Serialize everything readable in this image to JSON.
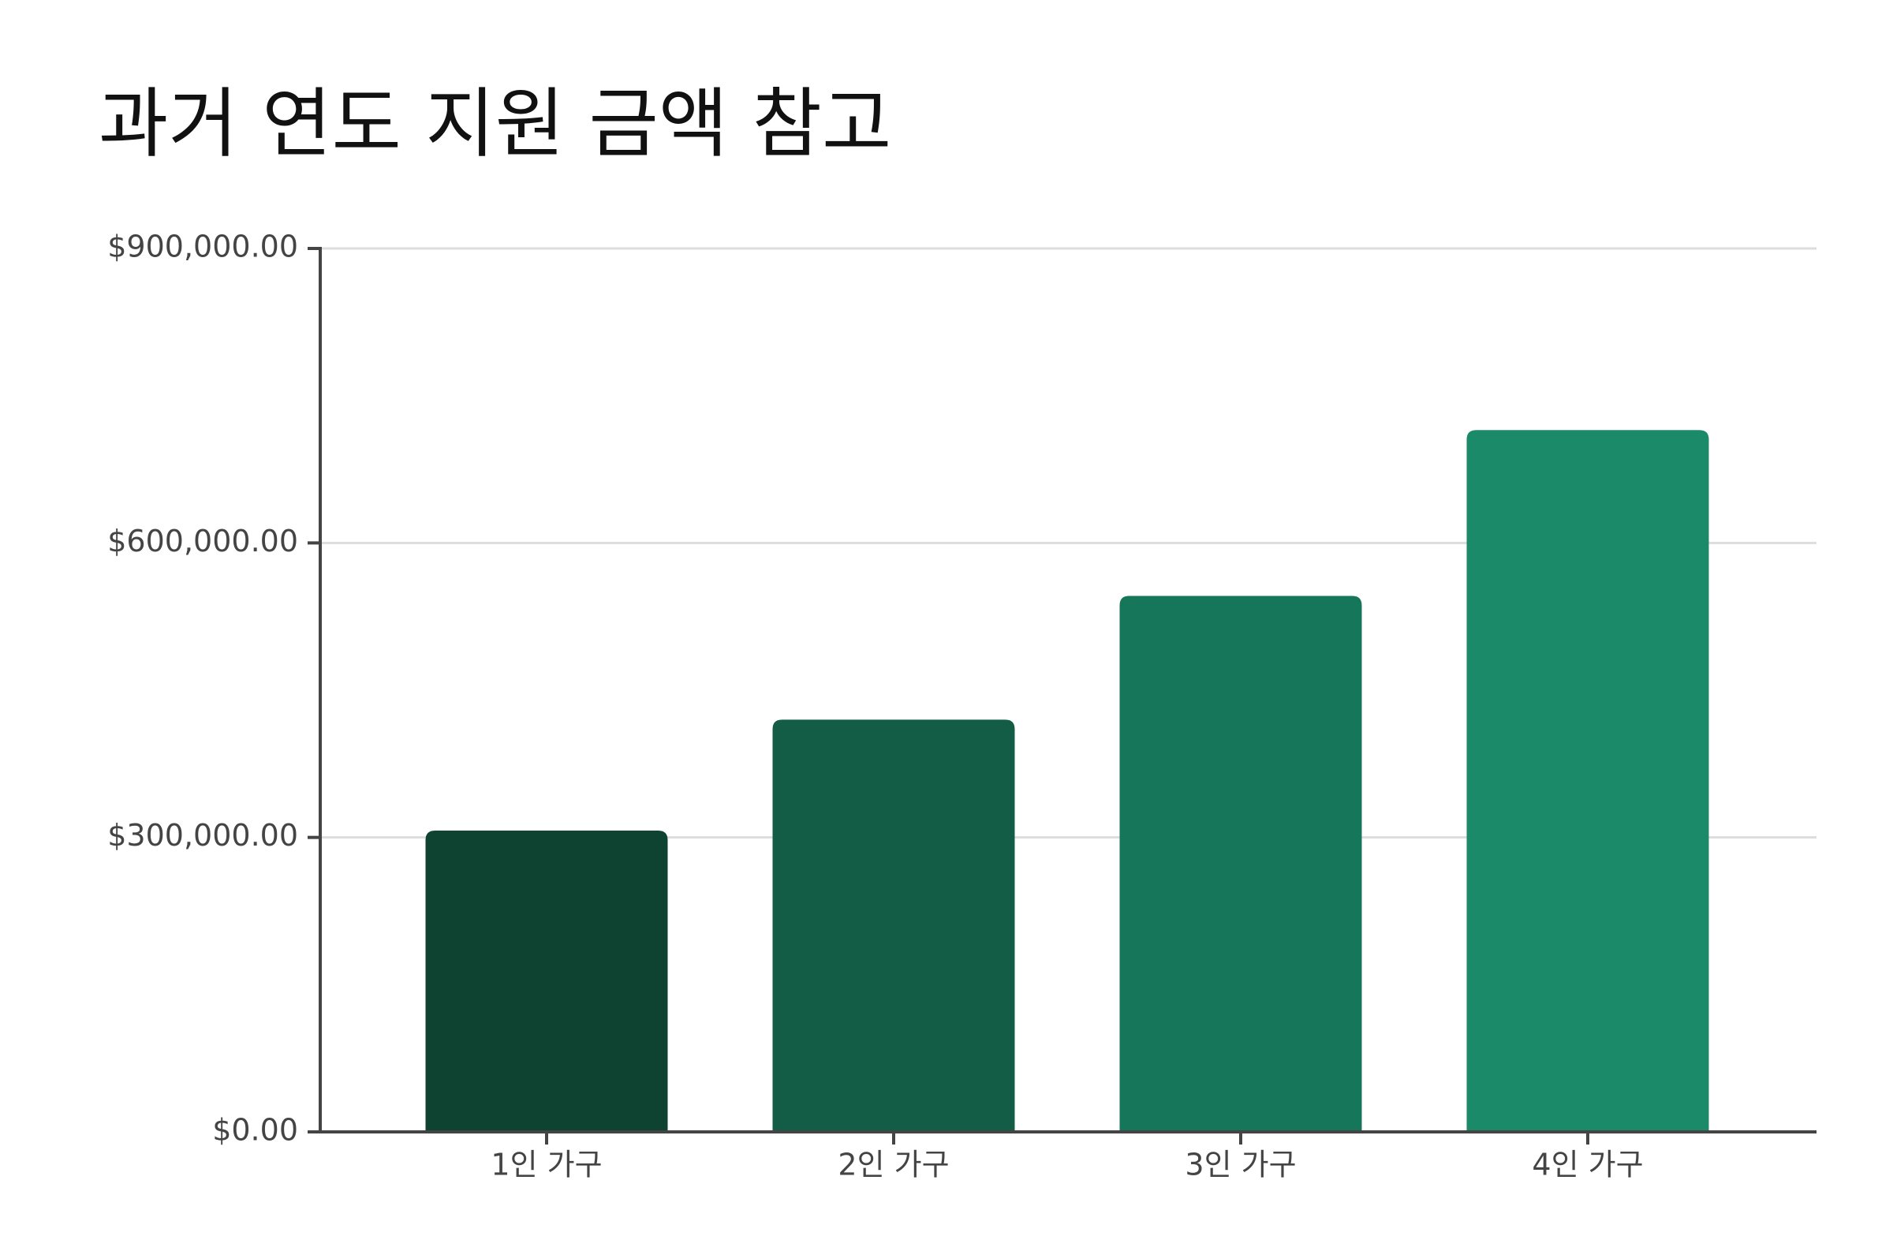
{
  "chart_data": {
    "type": "bar",
    "title": "과거 연도 지원 금액 참고",
    "categories": [
      "1인 가구",
      "2인 가구",
      "3인 가구",
      "4인 가구"
    ],
    "values": [
      307000,
      420000,
      546000,
      715000
    ],
    "colors": [
      "#0d4330",
      "#135c45",
      "#16765a",
      "#1a8a68"
    ],
    "ylim": [
      0,
      900000
    ],
    "yticks": [
      {
        "value": 0,
        "label": "$0.00"
      },
      {
        "value": 300000,
        "label": "$300,000.00"
      },
      {
        "value": 600000,
        "label": "$600,000.00"
      },
      {
        "value": 900000,
        "label": "$900,000.00"
      }
    ],
    "grid": true
  }
}
